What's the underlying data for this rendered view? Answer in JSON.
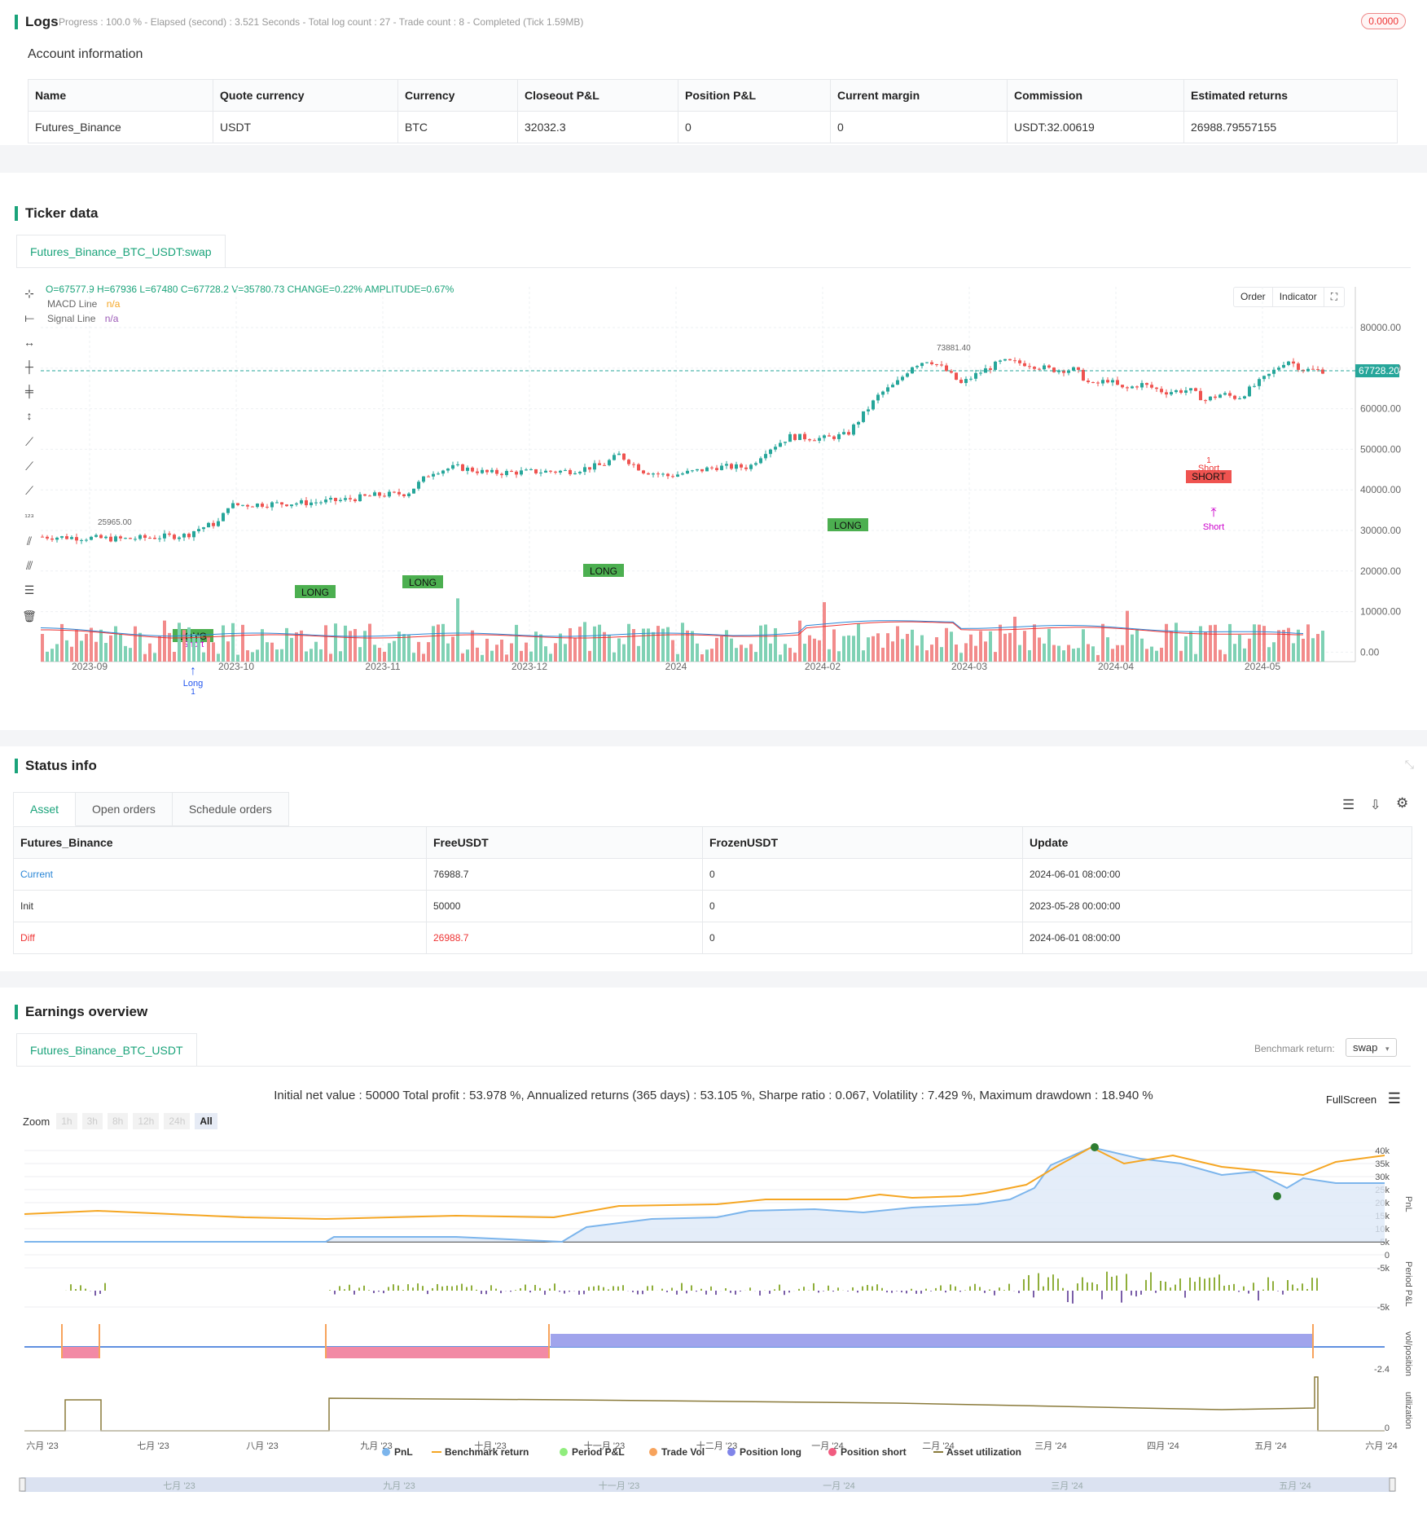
{
  "logs": {
    "title": "Logs",
    "progress": "Progress : 100.0 % - Elapsed (second) : 3.521 Seconds - Total log count : 27 - Trade count : 8 - Completed (Tick 1.59MB)",
    "badge": "0.0000",
    "account_title": "Account information",
    "headers": [
      "Name",
      "Quote currency",
      "Currency",
      "Closeout P&L",
      "Position P&L",
      "Current margin",
      "Commission",
      "Estimated returns"
    ],
    "row": [
      "Futures_Binance",
      "USDT",
      "BTC",
      "32032.3",
      "0",
      "0",
      "USDT:32.00619",
      "26988.79557155"
    ]
  },
  "ticker": {
    "title": "Ticker data",
    "tab": "Futures_Binance_BTC_USDT:swap",
    "ohlc": "O=67577.9 H=67936 L=67480 C=67728.2 V=35780.73 CHANGE=0.22% AMPLITUDE=0.67%",
    "legend": [
      {
        "label": "MACD Line",
        "value": "n/a",
        "color": "#f5a623"
      },
      {
        "label": "Signal Line",
        "value": "n/a",
        "color": "#9b59b6"
      }
    ],
    "buttons": [
      "Order",
      "Indicator"
    ],
    "price_ticks": [
      "80000.00",
      "70000.00",
      "60000.00",
      "50000.00",
      "40000.00",
      "30000.00",
      "20000.00",
      "10000.00",
      "0.00"
    ],
    "last_price": "67728.20",
    "high_label": "73881.40",
    "low_label": "25965.00",
    "x_ticks": [
      "2023-09",
      "2023-10",
      "2023-11",
      "2023-12",
      "2024",
      "2024-02",
      "2024-03",
      "2024-04",
      "2024-05"
    ],
    "signals": {
      "long": "LONG",
      "short": "SHORT",
      "short_small": "Short",
      "long_small": "Long",
      "one": "1"
    }
  },
  "status": {
    "title": "Status info",
    "tabs": [
      "Asset",
      "Open orders",
      "Schedule orders"
    ],
    "headers": [
      "Futures_Binance",
      "FreeUSDT",
      "FrozenUSDT",
      "Update"
    ],
    "rows": [
      [
        "Current",
        "76988.7",
        "0",
        "2024-06-01 08:00:00"
      ],
      [
        "Init",
        "50000",
        "0",
        "2023-05-28 00:00:00"
      ],
      [
        "Diff",
        "26988.7",
        "0",
        "2024-06-01 08:00:00"
      ]
    ]
  },
  "earnings": {
    "title": "Earnings overview",
    "tab": "Futures_Binance_BTC_USDT",
    "benchmark_label": "Benchmark return:",
    "benchmark_value": "swap",
    "summary": "Initial net value : 50000 Total profit : 53.978 %, Annualized returns (365 days) : 53.105 %, Sharpe ratio : 0.067, Volatility : 7.429 %, Maximum drawdown : 18.940 %",
    "fullscreen": "FullScreen",
    "zoom_label": "Zoom",
    "zoom_options": [
      "1h",
      "3h",
      "8h",
      "12h",
      "24h",
      "All"
    ],
    "pnl_ticks": [
      "40k",
      "35k",
      "30k",
      "25k",
      "20k",
      "15k",
      "10k",
      "5k",
      "0",
      "-5k"
    ],
    "period_tick": "-5k",
    "pos_tick": "-2.4",
    "util_tick": "0",
    "axis_names": [
      "PnL",
      "Period P&L",
      "vol/position",
      "utilization"
    ],
    "x_ticks": [
      "六月 '23",
      "七月 '23",
      "八月 '23",
      "九月 '23",
      "十月 '23",
      "十一月 '23",
      "十二月 '23",
      "一月 '24",
      "二月 '24",
      "三月 '24",
      "四月 '24",
      "五月 '24",
      "六月 '24"
    ],
    "legend": [
      {
        "label": "PnL",
        "color": "#7cb5ec"
      },
      {
        "label": "Benchmark return",
        "color": "#f5a623"
      },
      {
        "label": "Period P&L",
        "color": "#90ed7d"
      },
      {
        "label": "Trade Vol",
        "color": "#f7a35c"
      },
      {
        "label": "Position long",
        "color": "#8085e9"
      },
      {
        "label": "Position short",
        "color": "#f15c80"
      },
      {
        "label": "Asset utilization",
        "color": "#8a7a3a"
      }
    ],
    "navigator_ticks": [
      "七月 '23",
      "九月 '23",
      "十一月 '23",
      "一月 '24",
      "三月 '24",
      "五月 '24"
    ]
  }
}
